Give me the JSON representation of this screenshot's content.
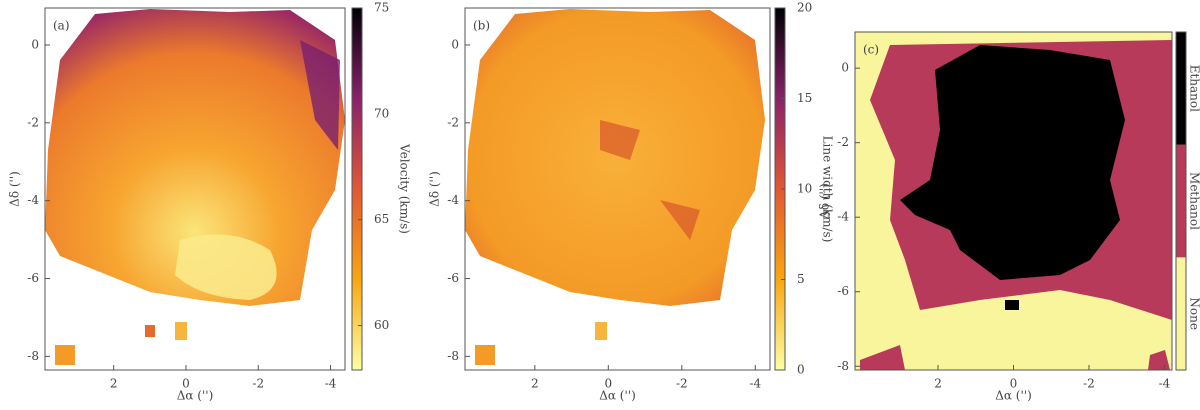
{
  "chart_data": [
    {
      "type": "heatmap",
      "panel_label": "(a)",
      "xlabel": "Δα ('')",
      "ylabel": "Δδ ('')",
      "xlim": [
        3.9,
        -4.4
      ],
      "ylim": [
        -8.35,
        0.95
      ],
      "xticks": [
        2,
        0,
        -2,
        -4
      ],
      "yticks": [
        0,
        -2,
        -4,
        -6,
        -8
      ],
      "colormap": "inferno",
      "colorbar": {
        "label": "Velocity (km/s)",
        "lim": [
          57.9,
          75
        ],
        "ticks": [
          60,
          65,
          70,
          75
        ]
      }
    },
    {
      "type": "heatmap",
      "panel_label": "(b)",
      "xlabel": "Δα ('')",
      "ylabel": "Δδ ('')",
      "xlim": [
        3.9,
        -4.4
      ],
      "ylim": [
        -8.35,
        0.95
      ],
      "xticks": [
        2,
        0,
        -2,
        -4
      ],
      "yticks": [
        0,
        -2,
        -4,
        -6,
        -8
      ],
      "colormap": "inferno",
      "colorbar": {
        "label": "Line width (km/s)",
        "lim": [
          0,
          20
        ],
        "ticks": [
          0,
          5,
          10,
          15,
          20
        ]
      }
    },
    {
      "type": "category-map",
      "panel_label": "(c)",
      "xlabel": "Δα ('')",
      "ylabel": "Δδ ('')",
      "xlim": [
        4.2,
        -4.2
      ],
      "ylim": [
        -8.1,
        0.97
      ],
      "xticks": [
        2,
        0,
        -2,
        -4
      ],
      "yticks": [
        0,
        -2,
        -4,
        -6,
        -8
      ],
      "colorbar": {
        "categories": [
          "None",
          "Methanol",
          "Ethanol"
        ],
        "colors": [
          "#f8f59c",
          "#b73a5a",
          "#000000"
        ]
      }
    }
  ]
}
